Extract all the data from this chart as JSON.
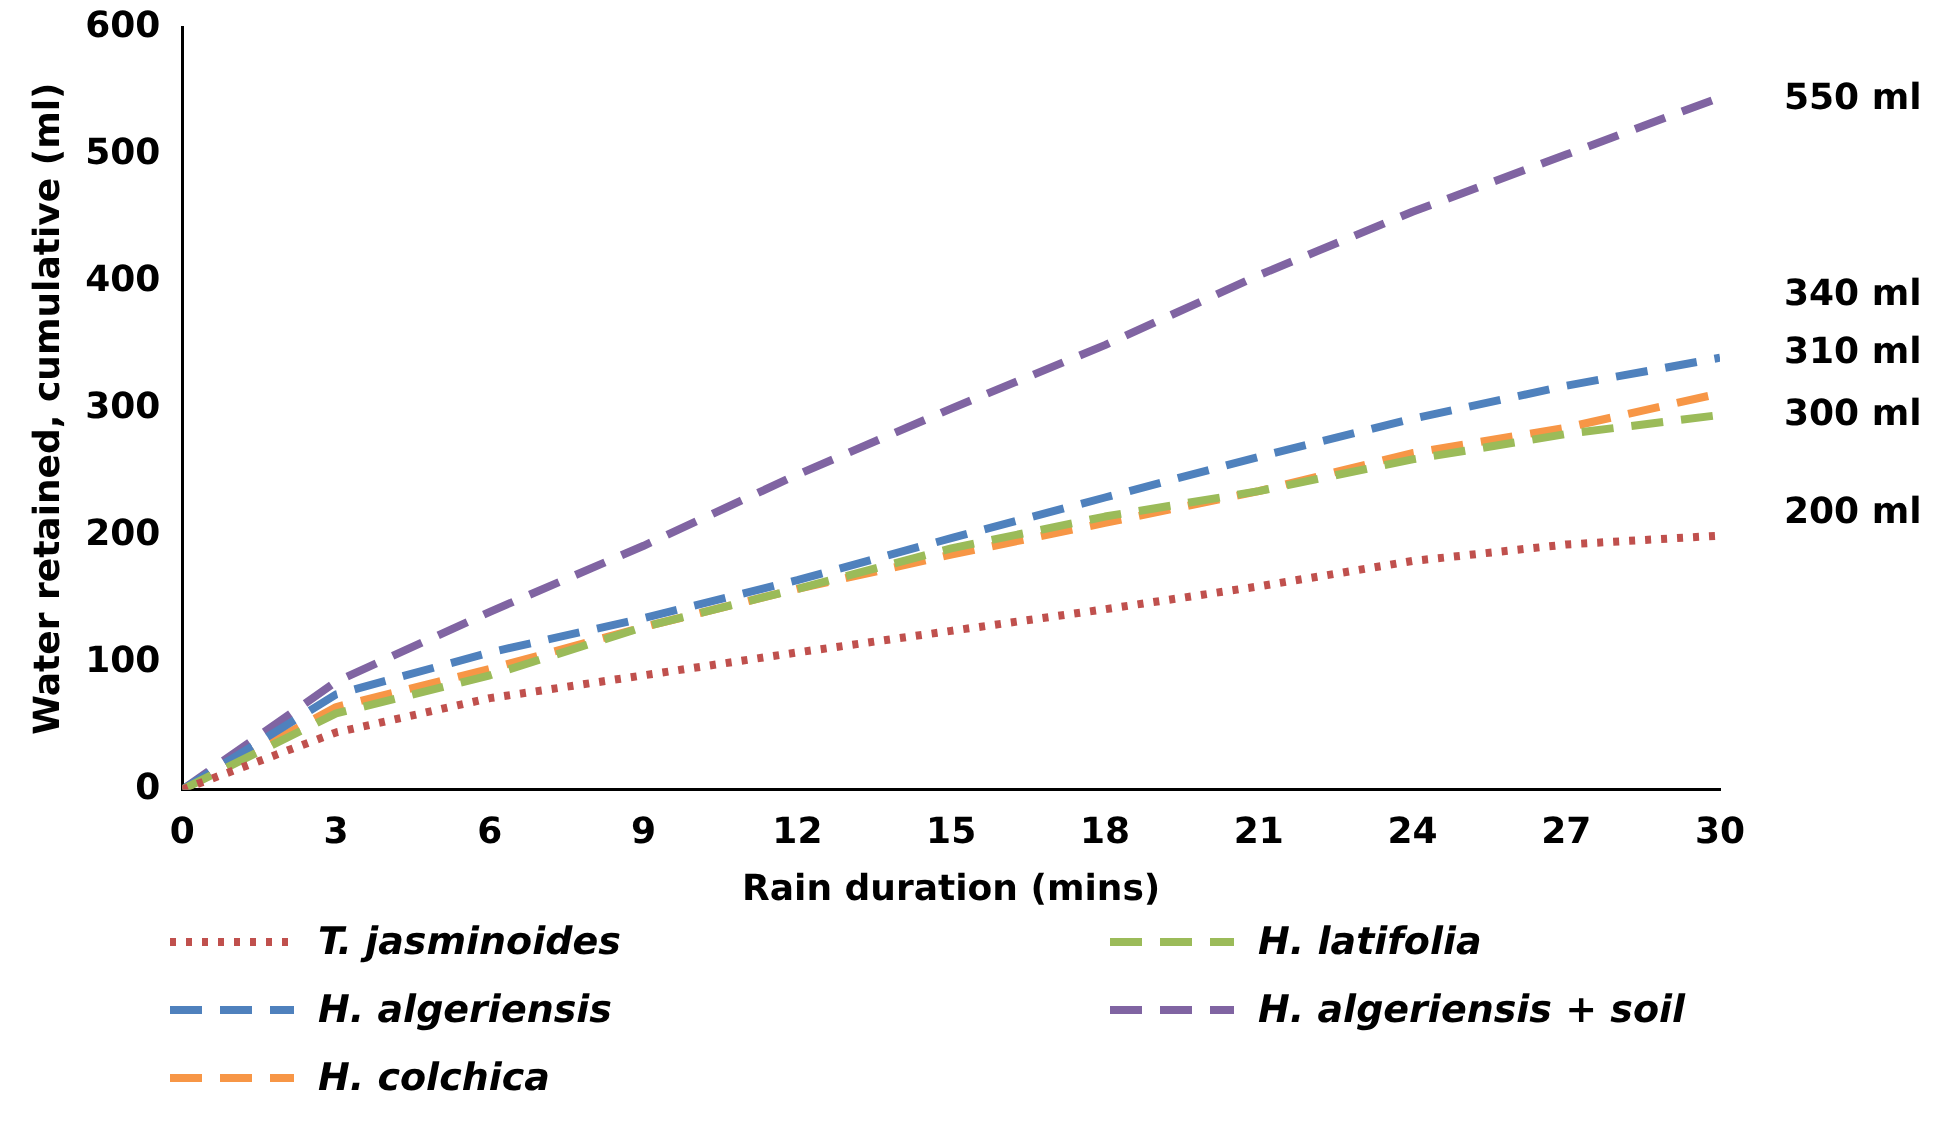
{
  "chart_data": {
    "type": "line",
    "xlabel": "Rain duration (mins)",
    "ylabel": "Water retained, cumulative (ml)",
    "x": [
      0,
      3,
      6,
      9,
      12,
      15,
      18,
      21,
      24,
      27,
      30
    ],
    "series": [
      {
        "name": "T. jasminoides",
        "color": "#c0504d",
        "line_style": "dotted",
        "values": [
          0,
          45,
          72,
          90,
          108,
          125,
          142,
          160,
          180,
          193,
          200
        ]
      },
      {
        "name": "H. latifolia",
        "color": "#9bbb59",
        "line_style": "dashed",
        "values": [
          0,
          60,
          90,
          128,
          158,
          190,
          215,
          235,
          260,
          280,
          295
        ]
      },
      {
        "name": "H. algeriensis",
        "color": "#4f81bd",
        "line_style": "dashed",
        "values": [
          0,
          75,
          108,
          135,
          165,
          198,
          230,
          262,
          292,
          318,
          340
        ]
      },
      {
        "name": "H. algeriensis + soil",
        "color": "#8064a2",
        "line_style": "dashed",
        "values": [
          0,
          85,
          140,
          192,
          248,
          300,
          350,
          405,
          455,
          500,
          545
        ]
      },
      {
        "name": "H. colchica",
        "color": "#f79646",
        "line_style": "dashed",
        "values": [
          0,
          65,
          95,
          128,
          158,
          185,
          210,
          235,
          265,
          285,
          312
        ]
      }
    ],
    "xlim": [
      0,
      30
    ],
    "xticks": [
      0,
      3,
      6,
      9,
      12,
      15,
      18,
      21,
      24,
      27,
      30
    ],
    "ylim": [
      0,
      600
    ],
    "yticks": [
      0,
      100,
      200,
      300,
      400,
      500,
      600
    ],
    "grid": false,
    "legend": "bottom",
    "marker": "none",
    "annotations": [
      "550 ml",
      "340 ml",
      "310 ml",
      "300 ml",
      "200 ml"
    ]
  }
}
